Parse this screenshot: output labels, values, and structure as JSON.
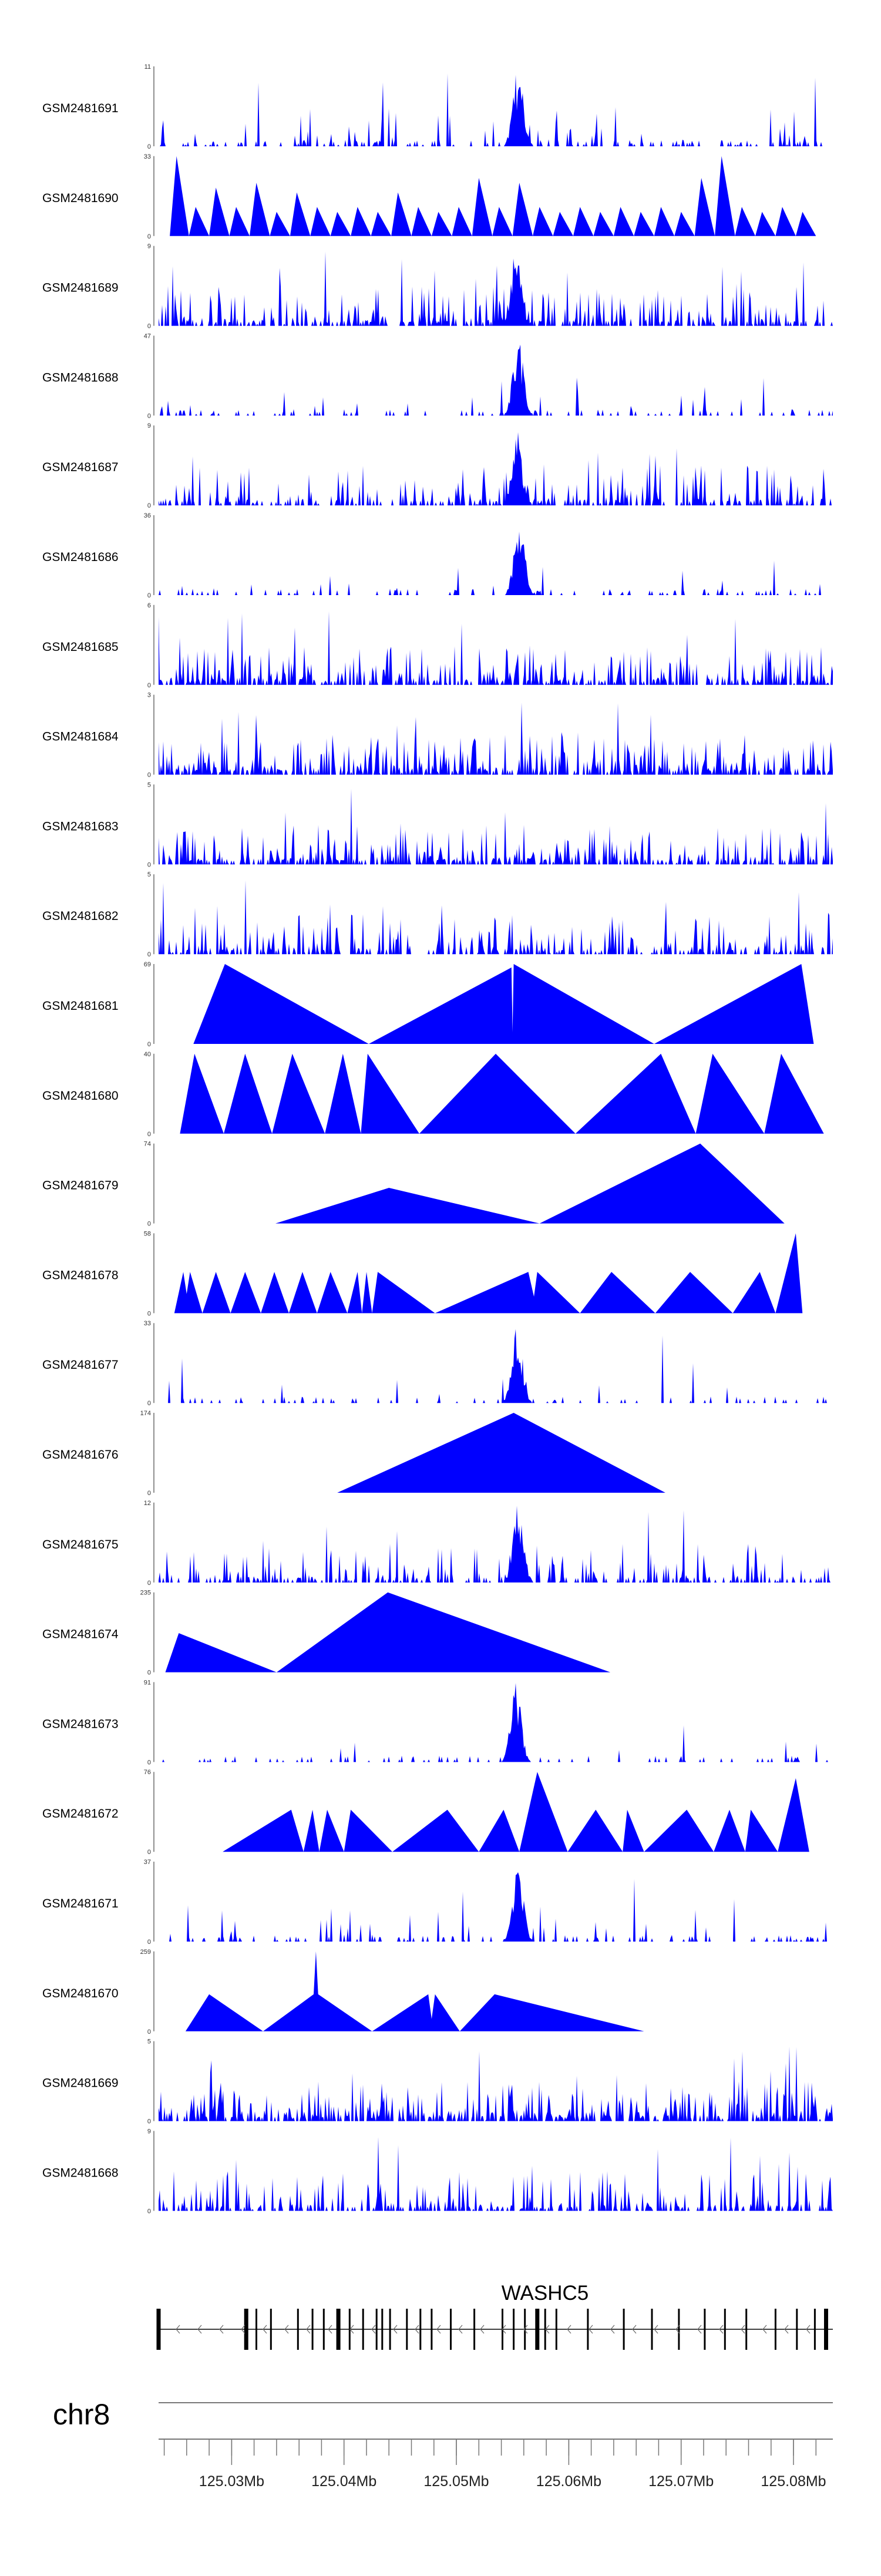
{
  "chart_data": {
    "type": "area",
    "title": "",
    "chromosome": "chr8",
    "x_range": [
      125.0235,
      125.0835
    ],
    "x_unit": "Mb",
    "axis": {
      "ticks": [
        125.03,
        125.04,
        125.05,
        125.06,
        125.07,
        125.08
      ],
      "tick_labels": [
        "125.03Mb",
        "125.04Mb",
        "125.05Mb",
        "125.06Mb",
        "125.07Mb",
        "125.08Mb"
      ],
      "minor_step": 0.002
    },
    "gene": {
      "name": "WASHC5",
      "strand": "-",
      "start": 125.0235,
      "end": 125.0835,
      "exons": [
        125.0235,
        125.0313,
        125.0322,
        125.0335,
        125.0359,
        125.0372,
        125.0382,
        125.0395,
        125.0405,
        125.0417,
        125.0429,
        125.0434,
        125.0441,
        125.0456,
        125.0468,
        125.0478,
        125.0495,
        125.0516,
        125.0541,
        125.0551,
        125.0561,
        125.0572,
        125.0579,
        125.0589,
        125.0617,
        125.0649,
        125.0674,
        125.0698,
        125.0721,
        125.0739,
        125.0758,
        125.0784,
        125.0803,
        125.0819,
        125.0829
      ]
    },
    "series": [
      {
        "name": "GSM2481691",
        "ymax": 11,
        "y_tick_labels": [
          "0",
          "11"
        ],
        "style": "noisy",
        "peak": 125.0555,
        "baseline": 0.1,
        "seed": 91
      },
      {
        "name": "GSM2481690",
        "ymax": 33,
        "y_tick_labels": [
          "0",
          "33"
        ],
        "style": "sparse",
        "points": [
          [
            125.0245,
            0
          ],
          [
            125.0251,
            33
          ],
          [
            125.0262,
            0
          ],
          [
            125.0268,
            12
          ],
          [
            125.028,
            0
          ],
          [
            125.0286,
            20
          ],
          [
            125.0298,
            0
          ],
          [
            125.0304,
            12
          ],
          [
            125.0316,
            0
          ],
          [
            125.0322,
            22
          ],
          [
            125.0334,
            0
          ],
          [
            125.034,
            10
          ],
          [
            125.0352,
            0
          ],
          [
            125.0358,
            18
          ],
          [
            125.037,
            0
          ],
          [
            125.0376,
            12
          ],
          [
            125.0388,
            0
          ],
          [
            125.0394,
            10
          ],
          [
            125.0406,
            0
          ],
          [
            125.0412,
            12
          ],
          [
            125.0424,
            0
          ],
          [
            125.043,
            10
          ],
          [
            125.0442,
            0
          ],
          [
            125.0448,
            18
          ],
          [
            125.046,
            0
          ],
          [
            125.0466,
            12
          ],
          [
            125.0478,
            0
          ],
          [
            125.0484,
            10
          ],
          [
            125.0496,
            0
          ],
          [
            125.0502,
            12
          ],
          [
            125.0514,
            0
          ],
          [
            125.052,
            24
          ],
          [
            125.0532,
            0
          ],
          [
            125.0538,
            12
          ],
          [
            125.055,
            0
          ],
          [
            125.0556,
            22
          ],
          [
            125.0568,
            0
          ],
          [
            125.0574,
            12
          ],
          [
            125.0586,
            0
          ],
          [
            125.0592,
            10
          ],
          [
            125.0604,
            0
          ],
          [
            125.061,
            12
          ],
          [
            125.0622,
            0
          ],
          [
            125.0628,
            10
          ],
          [
            125.064,
            0
          ],
          [
            125.0646,
            12
          ],
          [
            125.0658,
            0
          ],
          [
            125.0664,
            10
          ],
          [
            125.0676,
            0
          ],
          [
            125.0682,
            12
          ],
          [
            125.0694,
            0
          ],
          [
            125.07,
            10
          ],
          [
            125.0712,
            0
          ],
          [
            125.0718,
            24
          ],
          [
            125.073,
            0
          ],
          [
            125.0736,
            33
          ],
          [
            125.0748,
            0
          ],
          [
            125.0754,
            12
          ],
          [
            125.0766,
            0
          ],
          [
            125.0772,
            10
          ],
          [
            125.0784,
            0
          ],
          [
            125.079,
            12
          ],
          [
            125.0802,
            0
          ],
          [
            125.0808,
            10
          ],
          [
            125.082,
            0
          ]
        ]
      },
      {
        "name": "GSM2481689",
        "ymax": 9,
        "y_tick_labels": [
          "0",
          "9"
        ],
        "style": "noisy",
        "peak": 125.0553,
        "baseline": 0.4,
        "seed": 89
      },
      {
        "name": "GSM2481688",
        "ymax": 47,
        "y_tick_labels": [
          "0",
          "47"
        ],
        "style": "noisy",
        "peak": 125.0555,
        "baseline": 0.04,
        "seed": 88
      },
      {
        "name": "GSM2481687",
        "ymax": 9,
        "y_tick_labels": [
          "0",
          "9"
        ],
        "style": "noisy",
        "peak": 125.0554,
        "baseline": 0.3,
        "seed": 87
      },
      {
        "name": "GSM2481686",
        "ymax": 36,
        "y_tick_labels": [
          "0",
          "36"
        ],
        "style": "noisy",
        "peak": 125.0556,
        "baseline": 0.05,
        "seed": 86
      },
      {
        "name": "GSM2481685",
        "ymax": 6,
        "y_tick_labels": [
          "0",
          "6"
        ],
        "style": "noisy",
        "peak": null,
        "baseline": 0.45,
        "seed": 85
      },
      {
        "name": "GSM2481684",
        "ymax": 3,
        "y_tick_labels": [
          "0",
          "3"
        ],
        "style": "noisy",
        "peak": null,
        "baseline": 0.5,
        "seed": 84
      },
      {
        "name": "GSM2481683",
        "ymax": 5,
        "y_tick_labels": [
          "0",
          "5"
        ],
        "style": "noisy",
        "peak": null,
        "baseline": 0.45,
        "seed": 83
      },
      {
        "name": "GSM2481682",
        "ymax": 5,
        "y_tick_labels": [
          "0",
          "5"
        ],
        "style": "noisy",
        "peak": null,
        "baseline": 0.35,
        "seed": 82
      },
      {
        "name": "GSM2481681",
        "ymax": 69,
        "y_tick_labels": [
          "0",
          "69"
        ],
        "style": "sparse",
        "points": [
          [
            125.0266,
            0
          ],
          [
            125.0294,
            69
          ],
          [
            125.0422,
            0
          ],
          [
            125.0549,
            66
          ],
          [
            125.055,
            10
          ],
          [
            125.0551,
            69
          ],
          [
            125.0676,
            0
          ],
          [
            125.0807,
            69
          ],
          [
            125.0818,
            0
          ]
        ]
      },
      {
        "name": "GSM2481680",
        "ymax": 40,
        "y_tick_labels": [
          "0",
          "40"
        ],
        "style": "sparse",
        "points": [
          [
            125.0254,
            0
          ],
          [
            125.0267,
            40
          ],
          [
            125.0293,
            0
          ],
          [
            125.0312,
            40
          ],
          [
            125.0336,
            0
          ],
          [
            125.0354,
            40
          ],
          [
            125.0383,
            0
          ],
          [
            125.0399,
            40
          ],
          [
            125.0415,
            0
          ],
          [
            125.0421,
            40
          ],
          [
            125.0467,
            0
          ],
          [
            125.0535,
            40
          ],
          [
            125.0606,
            0
          ],
          [
            125.0682,
            40
          ],
          [
            125.0713,
            0
          ],
          [
            125.0728,
            40
          ],
          [
            125.0774,
            0
          ],
          [
            125.0789,
            40
          ],
          [
            125.0827,
            0
          ]
        ]
      },
      {
        "name": "GSM2481679",
        "ymax": 74,
        "y_tick_labels": [
          "0",
          "74"
        ],
        "style": "sparse",
        "points": [
          [
            125.0339,
            0
          ],
          [
            125.044,
            33
          ],
          [
            125.0574,
            0
          ],
          [
            125.0717,
            74
          ],
          [
            125.0792,
            0
          ]
        ]
      },
      {
        "name": "GSM2481678",
        "ymax": 58,
        "y_tick_labels": [
          "0",
          "58"
        ],
        "style": "sparse",
        "points": [
          [
            125.0249,
            0
          ],
          [
            125.0257,
            30
          ],
          [
            125.026,
            14
          ],
          [
            125.0263,
            30
          ],
          [
            125.0274,
            0
          ],
          [
            125.0286,
            30
          ],
          [
            125.0299,
            0
          ],
          [
            125.0312,
            30
          ],
          [
            125.0326,
            0
          ],
          [
            125.0338,
            30
          ],
          [
            125.0351,
            0
          ],
          [
            125.0363,
            30
          ],
          [
            125.0376,
            0
          ],
          [
            125.0388,
            30
          ],
          [
            125.0403,
            0
          ],
          [
            125.0412,
            30
          ],
          [
            125.0416,
            0
          ],
          [
            125.042,
            30
          ],
          [
            125.0425,
            0
          ],
          [
            125.043,
            30
          ],
          [
            125.0481,
            0
          ],
          [
            125.0564,
            30
          ],
          [
            125.0569,
            12
          ],
          [
            125.0572,
            30
          ],
          [
            125.061,
            0
          ],
          [
            125.0638,
            30
          ],
          [
            125.0677,
            0
          ],
          [
            125.0708,
            30
          ],
          [
            125.0746,
            0
          ],
          [
            125.077,
            30
          ],
          [
            125.0784,
            0
          ],
          [
            125.0802,
            58
          ],
          [
            125.0808,
            0
          ]
        ]
      },
      {
        "name": "GSM2481677",
        "ymax": 33,
        "y_tick_labels": [
          "0",
          "33"
        ],
        "style": "noisy",
        "peak": 125.0554,
        "baseline": 0.04,
        "seed": 77
      },
      {
        "name": "GSM2481676",
        "ymax": 174,
        "y_tick_labels": [
          "0",
          "174"
        ],
        "style": "sparse",
        "points": [
          [
            125.0394,
            0
          ],
          [
            125.0551,
            174
          ],
          [
            125.0686,
            0
          ]
        ]
      },
      {
        "name": "GSM2481675",
        "ymax": 12,
        "y_tick_labels": [
          "0",
          "12"
        ],
        "style": "noisy",
        "peak": 125.0555,
        "baseline": 0.25,
        "seed": 75
      },
      {
        "name": "GSM2481674",
        "ymax": 235,
        "y_tick_labels": [
          "0",
          "235"
        ],
        "style": "sparse",
        "points": [
          [
            125.0241,
            0
          ],
          [
            125.0253,
            115
          ],
          [
            125.034,
            0
          ],
          [
            125.0439,
            235
          ],
          [
            125.0637,
            0
          ]
        ]
      },
      {
        "name": "GSM2481673",
        "ymax": 91,
        "y_tick_labels": [
          "0",
          "91"
        ],
        "style": "noisy",
        "peak": 125.0553,
        "baseline": 0.02,
        "seed": 73
      },
      {
        "name": "GSM2481672",
        "ymax": 76,
        "y_tick_labels": [
          "0",
          "76"
        ],
        "style": "sparse",
        "points": [
          [
            125.0292,
            0
          ],
          [
            125.0353,
            40
          ],
          [
            125.0364,
            0
          ],
          [
            125.0372,
            40
          ],
          [
            125.0378,
            0
          ],
          [
            125.0385,
            40
          ],
          [
            125.04,
            0
          ],
          [
            125.0406,
            40
          ],
          [
            125.0443,
            0
          ],
          [
            125.0492,
            40
          ],
          [
            125.052,
            0
          ],
          [
            125.0542,
            40
          ],
          [
            125.0556,
            0
          ],
          [
            125.0572,
            76
          ],
          [
            125.0599,
            0
          ],
          [
            125.0624,
            40
          ],
          [
            125.0648,
            0
          ],
          [
            125.0652,
            40
          ],
          [
            125.0667,
            0
          ],
          [
            125.0705,
            40
          ],
          [
            125.0729,
            0
          ],
          [
            125.0743,
            40
          ],
          [
            125.0757,
            0
          ],
          [
            125.0762,
            40
          ],
          [
            125.0786,
            0
          ],
          [
            125.0802,
            70
          ],
          [
            125.0814,
            0
          ]
        ]
      },
      {
        "name": "GSM2481671",
        "ymax": 37,
        "y_tick_labels": [
          "0",
          "37"
        ],
        "style": "noisy",
        "peak": 125.0555,
        "baseline": 0.08,
        "seed": 71
      },
      {
        "name": "GSM2481670",
        "ymax": 259,
        "y_tick_labels": [
          "0",
          "259"
        ],
        "style": "sparse",
        "points": [
          [
            125.0259,
            0
          ],
          [
            125.028,
            120
          ],
          [
            125.0328,
            0
          ],
          [
            125.0373,
            120
          ],
          [
            125.0375,
            259
          ],
          [
            125.0377,
            120
          ],
          [
            125.0425,
            0
          ],
          [
            125.0475,
            120
          ],
          [
            125.0478,
            40
          ],
          [
            125.0481,
            120
          ],
          [
            125.0503,
            0
          ],
          [
            125.0534,
            120
          ],
          [
            125.0667,
            0
          ]
        ]
      },
      {
        "name": "GSM2481669",
        "ymax": 5,
        "y_tick_labels": [
          "0",
          "5"
        ],
        "style": "noisy",
        "peak": null,
        "baseline": 0.5,
        "seed": 69
      },
      {
        "name": "GSM2481668",
        "ymax": 9,
        "y_tick_labels": [
          "0",
          "9"
        ],
        "style": "noisy",
        "peak": null,
        "baseline": 0.35,
        "seed": 68
      }
    ]
  },
  "colors": {
    "fill": "#0000ff",
    "axis": "#555555",
    "label": "#000000"
  }
}
